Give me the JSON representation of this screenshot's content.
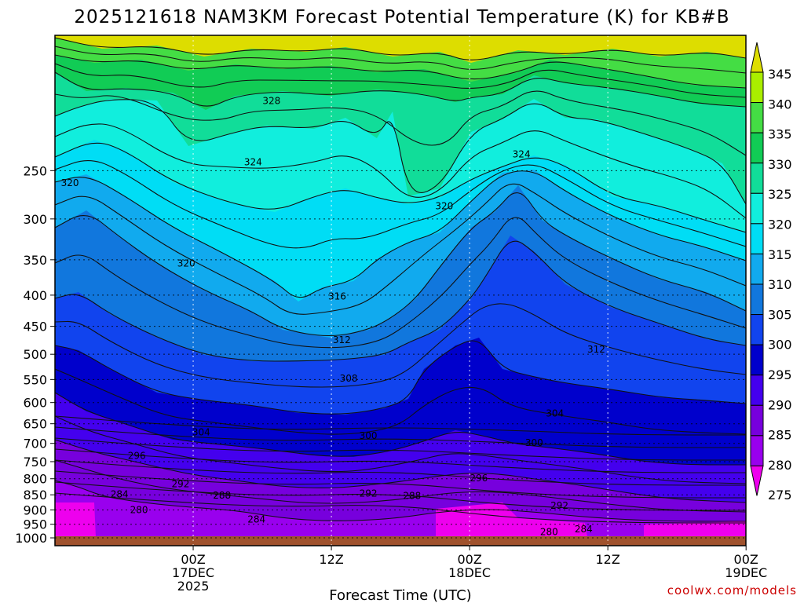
{
  "chart_data": {
    "type": "heatmap",
    "title": "2025121618 NAM3KM Forecast Potential Temperature (K) for KB#B",
    "xlabel": "Forecast Time (UTC)",
    "ylabel": "",
    "credit": "coolwx.com/models",
    "y_ticks": [
      "250",
      "300",
      "350",
      "400",
      "450",
      "500",
      "550",
      "600",
      "650",
      "700",
      "750",
      "800",
      "850",
      "900",
      "950",
      "1000"
    ],
    "y_tick_values": [
      250,
      300,
      350,
      400,
      450,
      500,
      550,
      600,
      650,
      700,
      750,
      800,
      850,
      900,
      950,
      1000
    ],
    "y_range": [
      150,
      1030
    ],
    "x_range_hours": [
      -6,
      54
    ],
    "x_ticks": [
      {
        "hour": 6,
        "lines": [
          "00Z",
          "17DEC",
          "2025"
        ]
      },
      {
        "hour": 18,
        "lines": [
          "12Z"
        ]
      },
      {
        "hour": 30,
        "lines": [
          "00Z",
          "18DEC"
        ]
      },
      {
        "hour": 42,
        "lines": [
          "12Z"
        ]
      },
      {
        "hour": 54,
        "lines": [
          "00Z",
          "19DEC"
        ]
      }
    ],
    "colorbar_levels": [
      345,
      340,
      335,
      330,
      325,
      320,
      315,
      310,
      305,
      300,
      295,
      290,
      285,
      280,
      275
    ],
    "colorbar_colors": [
      "#dddd00",
      "#aaee00",
      "#44dd44",
      "#11cc55",
      "#11dd99",
      "#11eedd",
      "#00ddf5",
      "#11aaee",
      "#1177dd",
      "#1144ee",
      "#0000cc",
      "#4400ee",
      "#7700dd",
      "#9900ee",
      "#ee00ee"
    ],
    "contour_labels": [
      {
        "value": "328",
        "hour": 12.8,
        "pressure": 192
      },
      {
        "value": "324",
        "hour": 11.2,
        "pressure": 242
      },
      {
        "value": "324",
        "hour": 34.5,
        "pressure": 235
      },
      {
        "value": "320",
        "hour": -4.7,
        "pressure": 262
      },
      {
        "value": "320",
        "hour": 27.8,
        "pressure": 286
      },
      {
        "value": "320",
        "hour": 5.4,
        "pressure": 355
      },
      {
        "value": "316",
        "hour": 18.5,
        "pressure": 402
      },
      {
        "value": "312",
        "hour": 18.9,
        "pressure": 474
      },
      {
        "value": "312",
        "hour": 41.0,
        "pressure": 491
      },
      {
        "value": "308",
        "hour": 19.5,
        "pressure": 548
      },
      {
        "value": "304",
        "hour": 6.7,
        "pressure": 671
      },
      {
        "value": "304",
        "hour": 37.4,
        "pressure": 625
      },
      {
        "value": "300",
        "hour": 21.2,
        "pressure": 680
      },
      {
        "value": "300",
        "hour": 35.6,
        "pressure": 699
      },
      {
        "value": "296",
        "hour": 1.1,
        "pressure": 734
      },
      {
        "value": "296",
        "hour": 30.8,
        "pressure": 798
      },
      {
        "value": "292",
        "hour": 4.9,
        "pressure": 816
      },
      {
        "value": "292",
        "hour": 21.2,
        "pressure": 846
      },
      {
        "value": "292",
        "hour": 37.8,
        "pressure": 885
      },
      {
        "value": "288",
        "hour": 8.5,
        "pressure": 852
      },
      {
        "value": "288",
        "hour": 25.0,
        "pressure": 853
      },
      {
        "value": "284",
        "hour": -0.4,
        "pressure": 848
      },
      {
        "value": "284",
        "hour": 11.5,
        "pressure": 932
      },
      {
        "value": "284",
        "hour": 39.9,
        "pressure": 968
      },
      {
        "value": "280",
        "hour": 1.3,
        "pressure": 900
      },
      {
        "value": "280",
        "hour": 36.9,
        "pressure": 978
      }
    ]
  }
}
